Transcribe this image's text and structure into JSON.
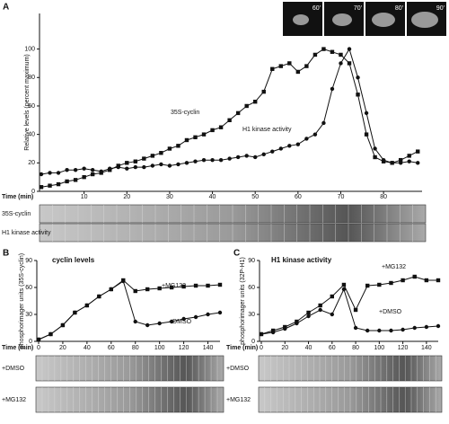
{
  "chart_data": [
    {
      "type": "line",
      "panel": "A",
      "xlabel": "Time (min)",
      "ylabel": "Relative levels (percent maximum)",
      "insets": [
        "60'",
        "70'",
        "80'",
        "90'"
      ],
      "blots": [
        "35S-cyclin",
        "H1 kinase activity"
      ],
      "xlim": [
        0,
        89
      ],
      "xticks": [
        10,
        20,
        30,
        40,
        50,
        60,
        70,
        80
      ],
      "ylim": [
        0,
        125
      ],
      "yticks": [
        0,
        20,
        40,
        60,
        80,
        100
      ],
      "x": [
        0,
        2,
        4,
        6,
        8,
        10,
        12,
        14,
        16,
        18,
        20,
        22,
        24,
        26,
        28,
        30,
        32,
        34,
        36,
        38,
        40,
        42,
        44,
        46,
        48,
        50,
        52,
        54,
        56,
        58,
        60,
        62,
        64,
        66,
        68,
        70,
        72,
        74,
        76,
        78,
        80,
        82,
        84,
        86,
        88
      ],
      "series": [
        {
          "name": "35S-cyclin",
          "marker": "square",
          "color": "#111111",
          "values": [
            3,
            4,
            5,
            7,
            8,
            10,
            12,
            13,
            15,
            18,
            20,
            21,
            23,
            25,
            27,
            30,
            32,
            36,
            38,
            40,
            43,
            45,
            50,
            55,
            60,
            63,
            70,
            86,
            88,
            90,
            84,
            88,
            96,
            100,
            98,
            96,
            90,
            68,
            40,
            24,
            21,
            20,
            22,
            25,
            28
          ]
        },
        {
          "name": "H1 kinase activity",
          "marker": "circle",
          "color": "#111111",
          "values": [
            12,
            13,
            13,
            15,
            15,
            16,
            15,
            14,
            16,
            17,
            16,
            17,
            17,
            18,
            19,
            18,
            19,
            20,
            21,
            22,
            22,
            22,
            23,
            24,
            25,
            24,
            26,
            28,
            30,
            32,
            33,
            37,
            40,
            48,
            72,
            90,
            100,
            80,
            55,
            30,
            22,
            20,
            20,
            21,
            20
          ]
        }
      ]
    },
    {
      "type": "line",
      "panel": "B",
      "title": "cyclin levels",
      "xlabel": "Time (min)",
      "ylabel": "phosphorimager units (35S-cyclin)",
      "blots": [
        "+DMSO",
        "+MG132"
      ],
      "xlim": [
        0,
        150
      ],
      "xticks": [
        0,
        20,
        40,
        60,
        80,
        100,
        120,
        140
      ],
      "ylim": [
        0,
        90
      ],
      "yticks": [
        0,
        30,
        60,
        90
      ],
      "x": [
        0,
        10,
        20,
        30,
        40,
        50,
        60,
        70,
        80,
        90,
        100,
        110,
        120,
        130,
        140,
        150
      ],
      "series": [
        {
          "name": "+MG132",
          "marker": "square",
          "color": "#111111",
          "values": [
            2,
            8,
            18,
            32,
            40,
            50,
            58,
            68,
            56,
            58,
            59,
            60,
            61,
            62,
            62,
            63
          ]
        },
        {
          "name": "+DMSO",
          "marker": "circle",
          "color": "#111111",
          "values": [
            2,
            8,
            18,
            32,
            40,
            50,
            58,
            67,
            22,
            18,
            20,
            22,
            25,
            27,
            30,
            32
          ]
        }
      ]
    },
    {
      "type": "line",
      "panel": "C",
      "title": "H1 kinase activity",
      "xlabel": "Time (min)",
      "ylabel": "phosphorimager units (32P-H1)",
      "blots": [
        "+DMSO",
        "+MG132"
      ],
      "xlim": [
        0,
        150
      ],
      "xticks": [
        0,
        20,
        40,
        60,
        80,
        100,
        120,
        140
      ],
      "ylim": [
        0,
        90
      ],
      "yticks": [
        0,
        30,
        60,
        90
      ],
      "x": [
        0,
        10,
        20,
        30,
        40,
        50,
        60,
        70,
        80,
        90,
        100,
        110,
        120,
        130,
        140,
        150
      ],
      "series": [
        {
          "name": "+MG132",
          "marker": "square",
          "color": "#111111",
          "values": [
            8,
            12,
            16,
            22,
            32,
            40,
            50,
            63,
            35,
            62,
            63,
            65,
            68,
            72,
            68,
            68
          ]
        },
        {
          "name": "+DMSO",
          "marker": "circle",
          "color": "#111111",
          "values": [
            8,
            10,
            14,
            20,
            28,
            35,
            30,
            58,
            15,
            12,
            12,
            12,
            13,
            15,
            16,
            17
          ]
        }
      ]
    }
  ]
}
